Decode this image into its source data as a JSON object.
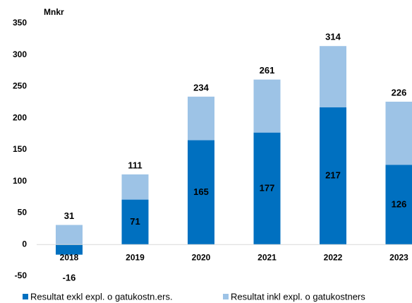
{
  "chart_data": {
    "type": "bar",
    "y_label": "Mnkr",
    "categories": [
      "2018",
      "2019",
      "2020",
      "2021",
      "2022",
      "2023"
    ],
    "series": [
      {
        "name": "Resultat exkl expl. o gatukostn.ers.",
        "color": "#0070c0",
        "values": [
          -16,
          71,
          165,
          177,
          217,
          126
        ]
      },
      {
        "name": "Resultat inkl expl. o gatukostners",
        "color": "#9dc3e6",
        "values": [
          31,
          111,
          234,
          261,
          314,
          226
        ]
      }
    ],
    "ylim": [
      -50,
      350
    ],
    "yticks": [
      -50,
      0,
      50,
      100,
      150,
      200,
      250,
      300,
      350
    ],
    "grid": false
  }
}
